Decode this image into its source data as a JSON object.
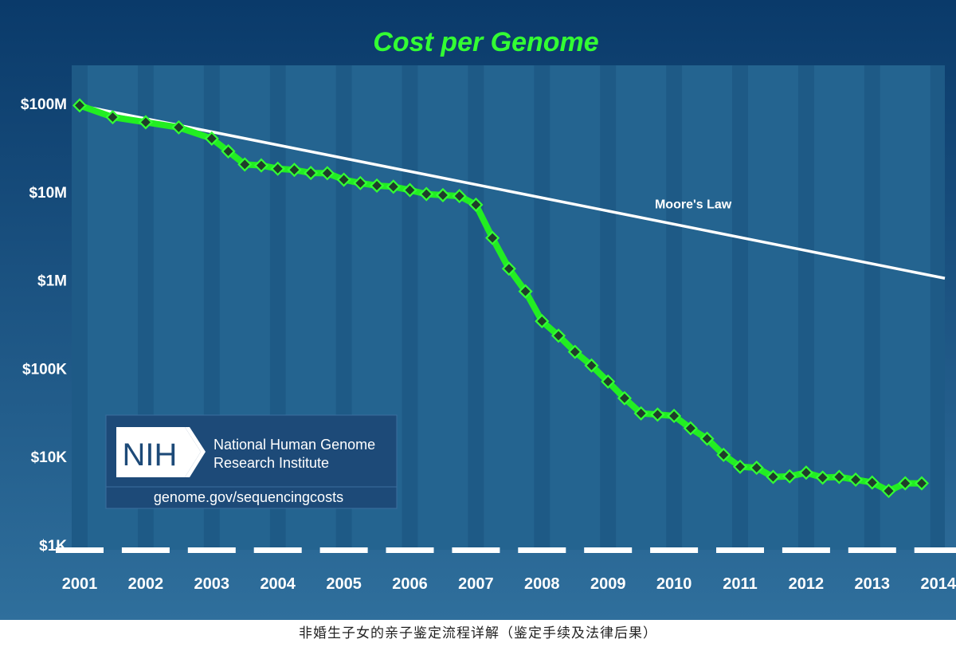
{
  "colors": {
    "bg_top": "#0a3a6a",
    "bg_bottom": "#2f6f9c",
    "plot_bg": "#1e5a86",
    "band_light": "#3a88b5",
    "title": "#33ff33",
    "genome_line": "#22ee22",
    "marker_fill": "#1f3d2a",
    "marker_stroke": "#33ff33",
    "moore_line": "#ffffff",
    "tick_label": "#ffffff",
    "logo_bg": "#1d4a78",
    "logo_border": "#3a6e9e"
  },
  "logo": {
    "mark": "NIH",
    "line1": "National Human Genome",
    "line2": "Research Institute",
    "url": "genome.gov/sequencingcosts"
  },
  "caption": "非婚生子女的亲子鉴定流程详解（鉴定手续及法律后果）",
  "chart_data": {
    "type": "line",
    "title": "Cost per Genome",
    "xlabel": "",
    "ylabel": "",
    "y_scale": "log",
    "ylim": [
      1000,
      100000000
    ],
    "xlim": [
      2001,
      2014.1
    ],
    "y_ticks": [
      {
        "value": 100000000,
        "label": "$100M"
      },
      {
        "value": 10000000,
        "label": "$10M"
      },
      {
        "value": 1000000,
        "label": "$1M"
      },
      {
        "value": 100000,
        "label": "$100K"
      },
      {
        "value": 10000,
        "label": "$10K"
      },
      {
        "value": 1000,
        "label": "$1K"
      }
    ],
    "x_ticks": [
      {
        "value": 2001,
        "label": "2001"
      },
      {
        "value": 2002,
        "label": "2002"
      },
      {
        "value": 2003,
        "label": "2003"
      },
      {
        "value": 2004,
        "label": "2004"
      },
      {
        "value": 2005,
        "label": "2005"
      },
      {
        "value": 2006,
        "label": "2006"
      },
      {
        "value": 2007,
        "label": "2007"
      },
      {
        "value": 2008,
        "label": "2008"
      },
      {
        "value": 2009,
        "label": "2009"
      },
      {
        "value": 2010,
        "label": "2010"
      },
      {
        "value": 2011,
        "label": "2011"
      },
      {
        "value": 2012,
        "label": "2012"
      },
      {
        "value": 2013,
        "label": "2013"
      },
      {
        "value": 2014,
        "label": "2014"
      }
    ],
    "grid": false,
    "legend": "none",
    "series": [
      {
        "name": "",
        "points": [
          [
            2001.0,
            95263000
          ],
          [
            2001.5,
            70175000
          ],
          [
            2002.0,
            61448000
          ],
          [
            2002.5,
            53751000
          ],
          [
            2003.0,
            40157000
          ],
          [
            2003.25,
            28780000
          ],
          [
            2003.5,
            20442000
          ],
          [
            2003.75,
            19934000
          ],
          [
            2004.0,
            18296000
          ],
          [
            2004.25,
            17756000
          ],
          [
            2004.5,
            16376000
          ],
          [
            2004.75,
            16275000
          ],
          [
            2005.0,
            13735000
          ],
          [
            2005.25,
            12580000
          ],
          [
            2005.5,
            11770000
          ],
          [
            2005.75,
            11442000
          ],
          [
            2006.0,
            10473000
          ],
          [
            2006.25,
            9438000
          ],
          [
            2006.5,
            9179000
          ],
          [
            2006.75,
            8963000
          ],
          [
            2007.0,
            7148000
          ],
          [
            2007.25,
            3008000
          ],
          [
            2007.5,
            1349000
          ],
          [
            2007.75,
            746000
          ],
          [
            2008.0,
            343000
          ],
          [
            2008.25,
            235000
          ],
          [
            2008.5,
            154000
          ],
          [
            2008.75,
            108000
          ],
          [
            2009.0,
            71000
          ],
          [
            2009.25,
            46000
          ],
          [
            2009.5,
            31000
          ],
          [
            2009.75,
            30000
          ],
          [
            2010.0,
            29000
          ],
          [
            2010.25,
            21000
          ],
          [
            2010.5,
            16000
          ],
          [
            2010.75,
            10500
          ],
          [
            2011.0,
            7700
          ],
          [
            2011.25,
            7500
          ],
          [
            2011.5,
            5900
          ],
          [
            2011.75,
            6000
          ],
          [
            2012.0,
            6600
          ],
          [
            2012.25,
            5800
          ],
          [
            2012.5,
            5900
          ],
          [
            2012.75,
            5500
          ],
          [
            2013.0,
            5100
          ],
          [
            2013.25,
            4100
          ],
          [
            2013.5,
            5000
          ],
          [
            2013.75,
            5000
          ]
        ]
      },
      {
        "name": "Moore's Law",
        "points": [
          [
            2001.0,
            95263000
          ],
          [
            2014.1,
            1050000
          ]
        ]
      }
    ],
    "annotations": [
      {
        "text": "Moore's Law",
        "x": 2010.0,
        "y": 7400000
      }
    ]
  }
}
